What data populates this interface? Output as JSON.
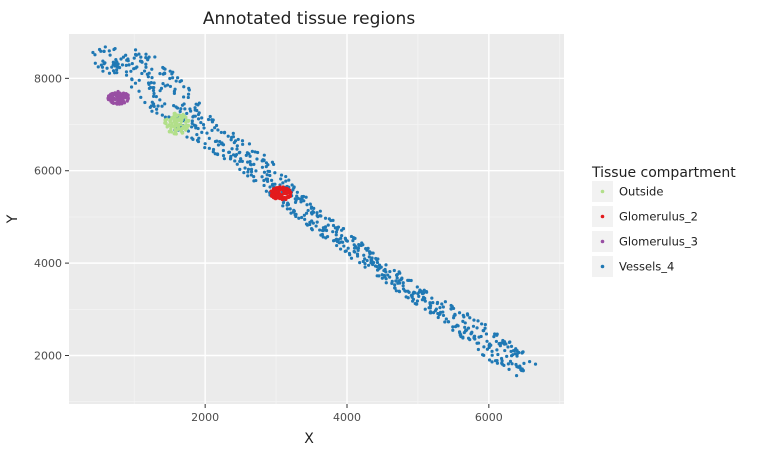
{
  "chart_data": {
    "type": "scatter",
    "title": "Annotated tissue regions",
    "xlabel": "X",
    "ylabel": "Y",
    "xlim": [
      80,
      7060
    ],
    "ylim": [
      950,
      8960
    ],
    "x_ticks": [
      2000,
      4000,
      6000
    ],
    "y_ticks": [
      2000,
      4000,
      6000,
      8000
    ],
    "grid": true,
    "panel_background": "#EBEBEB",
    "legend": {
      "title": "Tissue compartment",
      "position": "right"
    },
    "series": [
      {
        "name": "Outside",
        "color": "#B2DF8A",
        "shape": "ellipse-cluster",
        "center": [
          1600,
          7020
        ],
        "radius": [
          180,
          230
        ]
      },
      {
        "name": "Glomerulus_2",
        "color": "#E31A1C",
        "shape": "ellipse-cluster",
        "center": [
          3070,
          5510
        ],
        "radius": [
          150,
          150
        ]
      },
      {
        "name": "Glomerulus_3",
        "color": "#984EA3",
        "shape": "ellipse-cluster",
        "center": [
          780,
          7580
        ],
        "radius": [
          150,
          140
        ]
      },
      {
        "name": "Vessels_4",
        "color": "#1F78B4",
        "shape": "band",
        "path": [
          [
            400,
            8330
          ],
          [
            820,
            8440
          ],
          [
            1150,
            8160
          ],
          [
            1450,
            7630
          ],
          [
            1750,
            7110
          ],
          [
            2100,
            6750
          ],
          [
            2500,
            6380
          ],
          [
            2800,
            6000
          ],
          [
            3100,
            5550
          ],
          [
            3400,
            5160
          ],
          [
            3750,
            4720
          ],
          [
            4100,
            4320
          ],
          [
            4500,
            3850
          ],
          [
            5000,
            3300
          ],
          [
            5450,
            2900
          ],
          [
            5850,
            2450
          ],
          [
            6200,
            2080
          ],
          [
            6550,
            1700
          ]
        ],
        "half_width": [
          280,
          300,
          330,
          360,
          320,
          260,
          250,
          230,
          220,
          200,
          180,
          170,
          160,
          160,
          170,
          240,
          270,
          210
        ]
      }
    ]
  }
}
